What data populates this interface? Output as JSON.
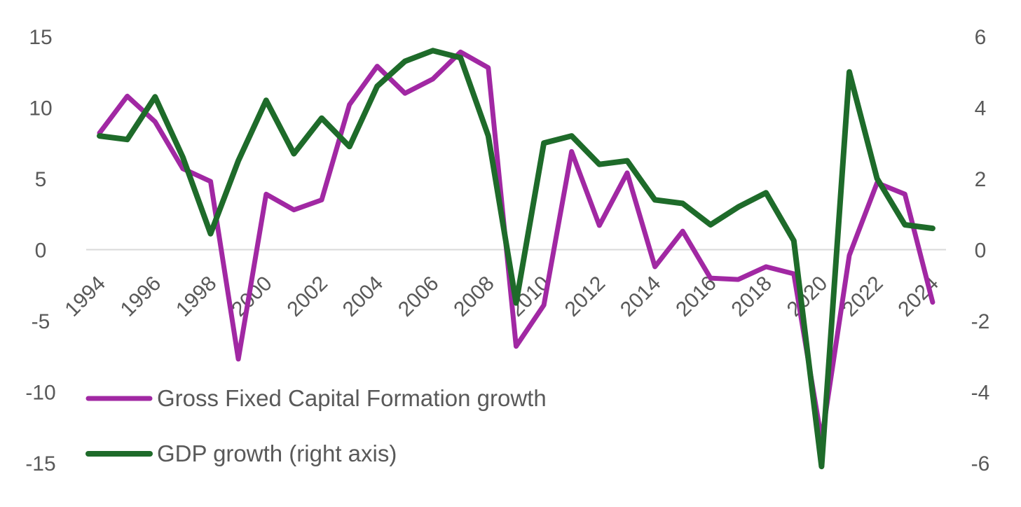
{
  "chart_data": {
    "type": "line",
    "x": [
      1994,
      1995,
      1996,
      1997,
      1998,
      1999,
      2000,
      2001,
      2002,
      2003,
      2004,
      2005,
      2006,
      2007,
      2008,
      2009,
      2010,
      2011,
      2012,
      2013,
      2014,
      2015,
      2016,
      2017,
      2018,
      2019,
      2020,
      2021,
      2022,
      2023,
      2024
    ],
    "x_tick_labels": [
      "1994",
      "1996",
      "1998",
      "2000",
      "2002",
      "2004",
      "2006",
      "2008",
      "2010",
      "2012",
      "2014",
      "2016",
      "2018",
      "2020",
      "2022",
      "2024"
    ],
    "y_left_ticks": [
      "15",
      "10",
      "5",
      "0",
      "-5",
      "-10",
      "-15"
    ],
    "y_right_ticks": [
      "6",
      "4",
      "2",
      "0",
      "-2",
      "-4",
      "-6"
    ],
    "ylim_left": [
      -15,
      15
    ],
    "ylim_right": [
      -6,
      6
    ],
    "grid": false,
    "legend_position": "bottom-left",
    "series": [
      {
        "name": "Gross Fixed Capital Formation growth",
        "axis": "left",
        "color": "#a128a3",
        "values": [
          8.2,
          10.8,
          9.0,
          5.7,
          4.8,
          -7.7,
          3.9,
          2.8,
          3.5,
          10.2,
          12.9,
          11.0,
          12.0,
          13.9,
          12.8,
          -6.8,
          -3.9,
          6.9,
          1.7,
          5.4,
          -1.2,
          1.3,
          -2.0,
          -2.1,
          -1.2,
          -1.7,
          -13.4,
          -0.4,
          4.7,
          3.9,
          -3.7
        ]
      },
      {
        "name": "GDP growth (right axis)",
        "axis": "right",
        "color": "#1e6b2a",
        "values": [
          3.2,
          3.1,
          4.3,
          2.6,
          0.45,
          2.5,
          4.2,
          2.7,
          3.7,
          2.9,
          4.6,
          5.3,
          5.6,
          5.4,
          3.2,
          -1.5,
          3.0,
          3.2,
          2.4,
          2.5,
          1.4,
          1.3,
          0.7,
          1.2,
          1.6,
          0.25,
          -6.1,
          5.0,
          2.0,
          0.7,
          0.6
        ]
      }
    ]
  }
}
